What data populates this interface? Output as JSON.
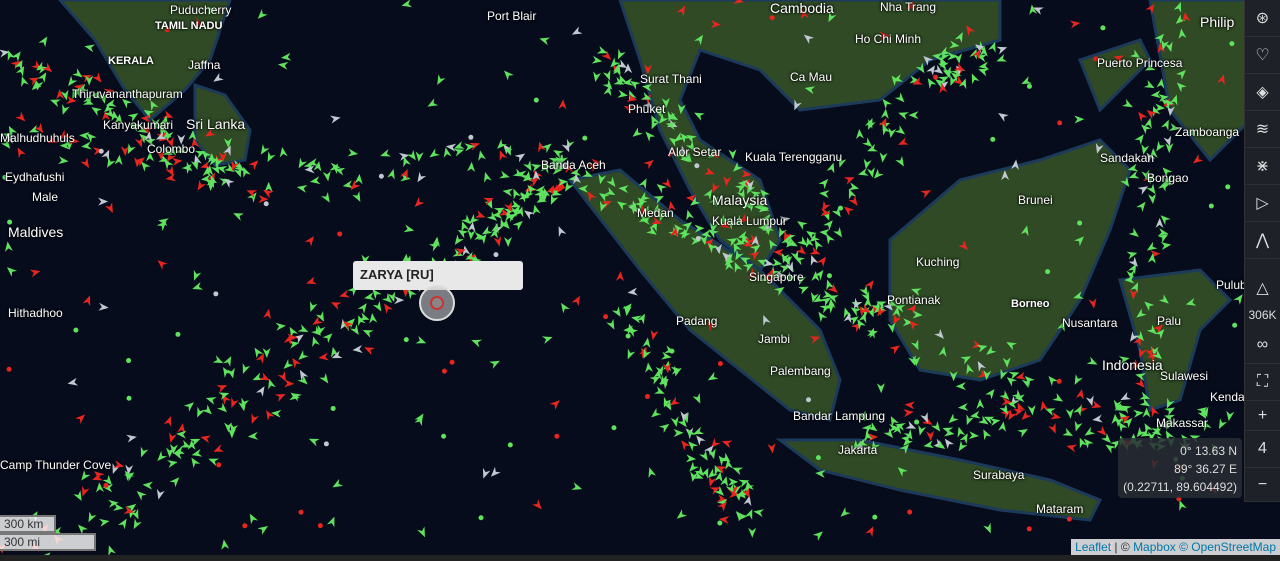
{
  "map": {
    "places": [
      "Cambodia",
      "Puducherry",
      "Port Blair",
      "Nha Trang",
      "Philip",
      "TAMIL NADU",
      "KERALA",
      "Jaffna",
      "Ho Chi Minh",
      "Surat Thani",
      "Ca Mau",
      "Puerto Princesa",
      "Thiruvananthapuram",
      "Phuket",
      "Kanyakumari",
      "Sri Lanka",
      "Colombo",
      "Malhudhuhuls",
      "Alor Setar",
      "Kuala Terengganu",
      "Zamboanga",
      "Sandakan",
      "Banda Aceh",
      "Eydhafushi",
      "Male",
      "Bongao",
      "Malaysia",
      "Medan",
      "Kuala Lumpur",
      "Brunei",
      "Maldives",
      "Kuching",
      "Singapore",
      "Pontianak",
      "Borneo",
      "Hithadhoo",
      "Padang",
      "Jambi",
      "Nusantara",
      "Palu",
      "Indonesia",
      "Palembang",
      "Sulawesi",
      "Kendari",
      "Bandar Lampung",
      "Makassar",
      "Jakarta",
      "Surabaya",
      "Camp Thunder Cove",
      "Mataram",
      "Pulub"
    ],
    "selected_vessel": "ZARYA [RU]",
    "colors": {
      "cargo": "#5fe35f",
      "tanker": "#e8251f",
      "other": "#c0c8d0",
      "ocean": "#050b1a",
      "land": "#2e4a22"
    }
  },
  "toolbar": {
    "icons": [
      "layers-venn-icon",
      "heart-icon",
      "layers-icon",
      "wind-icon",
      "network-icon",
      "play-icon",
      "compass-icon"
    ],
    "vessel_count": "306K",
    "zoom_level": "4",
    "zoom_in": "+",
    "zoom_out": "−"
  },
  "coordinates": {
    "lat": "0° 13.63 N",
    "lon": "89° 36.27 E",
    "decimal": "(0.22711, 89.604492)"
  },
  "scale": {
    "km": "300 km",
    "mi": "300 mi"
  },
  "attribution": {
    "leaflet": "Leaflet",
    "sep": " | © ",
    "mapbox": "Mapbox",
    "osm": " © OpenStreetMap"
  }
}
